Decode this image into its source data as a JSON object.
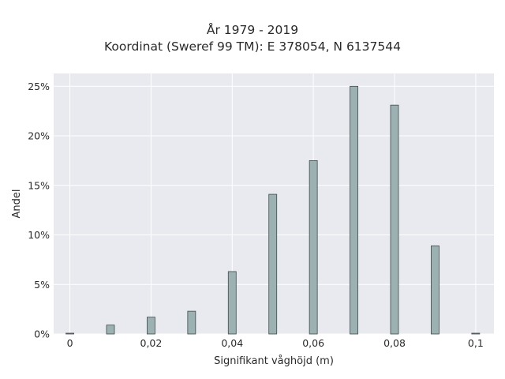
{
  "chart_data": {
    "type": "bar",
    "title": "År 1979 - 2019",
    "subtitle": "Koordinat (Sweref 99 TM): E 378054, N 6137544",
    "xlabel": "Signifikant våghöjd (m)",
    "ylabel": "Andel",
    "x": [
      0,
      0.01,
      0.02,
      0.03,
      0.04,
      0.05,
      0.06,
      0.07,
      0.08,
      0.09,
      0.1
    ],
    "values": [
      0.05,
      0.9,
      1.7,
      2.3,
      6.3,
      14.1,
      17.5,
      25.0,
      23.1,
      8.9,
      0.05
    ],
    "xlim": [
      -0.004,
      0.1045
    ],
    "ylim": [
      0,
      26.3
    ],
    "x_ticks": [
      0,
      0.02,
      0.04,
      0.06,
      0.08,
      0.1
    ],
    "x_tick_labels": [
      "0",
      "0,02",
      "0,04",
      "0,06",
      "0,08",
      "0,1"
    ],
    "y_ticks": [
      0,
      5,
      10,
      15,
      20,
      25
    ],
    "y_tick_labels": [
      "0%",
      "5%",
      "10%",
      "15%",
      "20%",
      "25%"
    ],
    "grid": true,
    "colors": {
      "bar_fill": "#9bb1b2",
      "bar_stroke": "#3e4a4a",
      "plot_bg": "#e9e9f0",
      "grid": "#ffffff"
    }
  }
}
